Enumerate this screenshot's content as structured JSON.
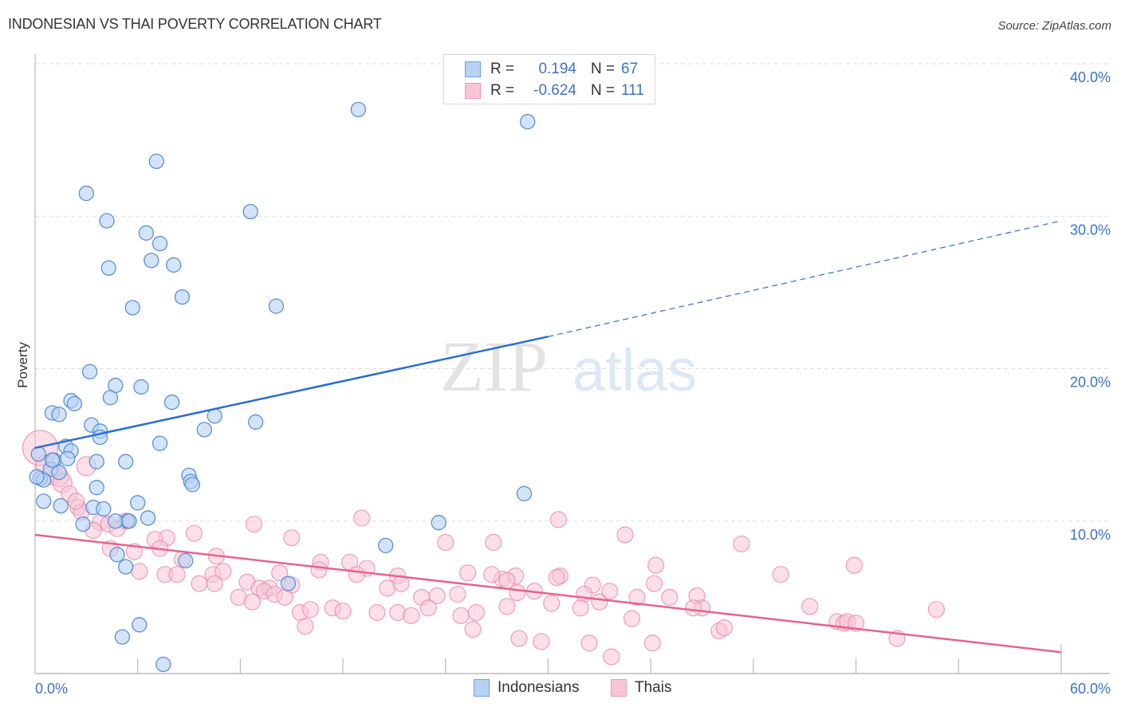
{
  "title": "INDONESIAN VS THAI POVERTY CORRELATION CHART",
  "source": "Source: ZipAtlas.com",
  "legend": {
    "rows": [
      {
        "series": "Indonesians",
        "r_label": "R =",
        "r_value": "0.194",
        "n_label": "N =",
        "n_value": "67"
      },
      {
        "series": "Thais",
        "r_label": "R =",
        "r_value": "-0.624",
        "n_label": "N =",
        "n_value": "111"
      }
    ]
  },
  "colors": {
    "indonesians_fill": "#b8d2f3",
    "indonesians_stroke": "#5b8fd8",
    "indonesians_line": "#2a6fd0",
    "thais_fill": "#f9c5d5",
    "thais_stroke": "#e98aa8",
    "thais_line": "#e5648e",
    "tick_label": "#3b73c8",
    "grid": "#dddddd"
  },
  "watermark": {
    "part1": "ZIP",
    "part2": "atlas"
  },
  "chart_data": {
    "type": "scatter",
    "title": "INDONESIAN VS THAI POVERTY CORRELATION CHART",
    "xlabel": "",
    "ylabel": "Poverty",
    "xlim": [
      0,
      60
    ],
    "ylim": [
      0,
      40
    ],
    "x_tick_labels": [
      "0.0%",
      "60.0%"
    ],
    "y_ticks": [
      10,
      20,
      30,
      40
    ],
    "y_tick_labels": [
      "10.0%",
      "20.0%",
      "30.0%",
      "40.0%"
    ],
    "grid": true,
    "legend_position": "bottom-center",
    "series": [
      {
        "name": "Indonesians",
        "r": 0.194,
        "n": 67,
        "trend": {
          "x0": 0,
          "y0": 14.8,
          "x1": 30,
          "y1": 22.1,
          "dashed_to_x": 60,
          "dashed_to_y": 29.7
        },
        "points": [
          [
            18.9,
            37.0
          ],
          [
            28.8,
            36.2
          ],
          [
            7.1,
            33.6
          ],
          [
            3.0,
            31.5
          ],
          [
            12.6,
            30.3
          ],
          [
            4.2,
            29.7
          ],
          [
            6.5,
            28.9
          ],
          [
            7.3,
            28.2
          ],
          [
            6.8,
            27.1
          ],
          [
            8.1,
            26.8
          ],
          [
            4.3,
            26.6
          ],
          [
            8.6,
            24.7
          ],
          [
            5.7,
            24.0
          ],
          [
            14.1,
            24.1
          ],
          [
            3.2,
            19.8
          ],
          [
            4.7,
            18.9
          ],
          [
            6.2,
            18.8
          ],
          [
            2.1,
            17.9
          ],
          [
            2.3,
            17.7
          ],
          [
            4.4,
            18.1
          ],
          [
            8.0,
            17.8
          ],
          [
            1.0,
            17.1
          ],
          [
            1.4,
            17.0
          ],
          [
            10.5,
            16.9
          ],
          [
            3.3,
            16.3
          ],
          [
            9.9,
            16.0
          ],
          [
            12.9,
            16.5
          ],
          [
            3.8,
            15.9
          ],
          [
            3.8,
            15.5
          ],
          [
            7.3,
            15.1
          ],
          [
            1.8,
            14.9
          ],
          [
            0.2,
            14.4
          ],
          [
            2.1,
            14.6
          ],
          [
            1.1,
            14.0
          ],
          [
            1.9,
            14.1
          ],
          [
            3.6,
            13.9
          ],
          [
            5.3,
            13.9
          ],
          [
            0.9,
            13.4
          ],
          [
            1.4,
            13.2
          ],
          [
            0.3,
            12.8
          ],
          [
            0.5,
            12.7
          ],
          [
            9.0,
            13.0
          ],
          [
            9.1,
            12.6
          ],
          [
            9.2,
            12.4
          ],
          [
            3.6,
            12.2
          ],
          [
            0.5,
            11.3
          ],
          [
            6.0,
            11.2
          ],
          [
            1.5,
            11.0
          ],
          [
            3.4,
            10.9
          ],
          [
            4.0,
            10.8
          ],
          [
            28.6,
            11.8
          ],
          [
            6.6,
            10.2
          ],
          [
            5.4,
            10.0
          ],
          [
            2.8,
            9.8
          ],
          [
            23.6,
            9.9
          ],
          [
            5.5,
            10.0
          ],
          [
            4.7,
            10.0
          ],
          [
            20.5,
            8.4
          ],
          [
            4.8,
            7.8
          ],
          [
            5.3,
            7.0
          ],
          [
            8.8,
            7.4
          ],
          [
            14.8,
            5.9
          ],
          [
            6.1,
            3.2
          ],
          [
            5.1,
            2.4
          ],
          [
            7.5,
            0.6
          ],
          [
            0.1,
            12.9
          ],
          [
            1.0,
            14.0
          ]
        ]
      },
      {
        "name": "Thais",
        "r": -0.624,
        "n": 111,
        "trend": {
          "x0": 0,
          "y0": 9.1,
          "x1": 60,
          "y1": 1.4
        },
        "points": [
          [
            0.3,
            14.8
          ],
          [
            0.6,
            13.7
          ],
          [
            1.0,
            13.0
          ],
          [
            1.4,
            12.9
          ],
          [
            1.6,
            12.5
          ],
          [
            3.0,
            13.6
          ],
          [
            2.0,
            11.8
          ],
          [
            2.5,
            10.9
          ],
          [
            2.7,
            10.6
          ],
          [
            3.8,
            9.9
          ],
          [
            3.4,
            9.4
          ],
          [
            4.3,
            9.8
          ],
          [
            4.8,
            9.5
          ],
          [
            5.3,
            10.0
          ],
          [
            7.7,
            8.9
          ],
          [
            9.3,
            9.2
          ],
          [
            12.8,
            9.8
          ],
          [
            15.0,
            8.9
          ],
          [
            19.1,
            10.2
          ],
          [
            24.0,
            8.6
          ],
          [
            26.8,
            8.6
          ],
          [
            30.6,
            10.1
          ],
          [
            34.5,
            9.1
          ],
          [
            41.3,
            8.5
          ],
          [
            4.4,
            8.2
          ],
          [
            5.8,
            8.0
          ],
          [
            7.0,
            8.8
          ],
          [
            7.3,
            8.2
          ],
          [
            8.6,
            7.5
          ],
          [
            10.6,
            7.7
          ],
          [
            16.7,
            7.3
          ],
          [
            18.4,
            7.3
          ],
          [
            19.4,
            6.9
          ],
          [
            21.2,
            6.4
          ],
          [
            25.3,
            6.6
          ],
          [
            27.3,
            6.2
          ],
          [
            28.1,
            6.4
          ],
          [
            30.7,
            6.4
          ],
          [
            32.6,
            5.8
          ],
          [
            36.3,
            7.1
          ],
          [
            43.6,
            6.5
          ],
          [
            47.9,
            7.1
          ],
          [
            6.1,
            6.7
          ],
          [
            7.6,
            6.5
          ],
          [
            8.3,
            6.5
          ],
          [
            10.4,
            6.5
          ],
          [
            11.0,
            6.7
          ],
          [
            12.4,
            6.0
          ],
          [
            13.1,
            5.6
          ],
          [
            13.7,
            5.6
          ],
          [
            14.3,
            6.6
          ],
          [
            15.0,
            5.8
          ],
          [
            16.6,
            6.8
          ],
          [
            18.8,
            6.5
          ],
          [
            20.6,
            5.6
          ],
          [
            21.4,
            5.9
          ],
          [
            22.6,
            5.0
          ],
          [
            23.5,
            5.1
          ],
          [
            24.7,
            5.2
          ],
          [
            26.7,
            6.5
          ],
          [
            27.6,
            6.1
          ],
          [
            28.2,
            5.3
          ],
          [
            29.2,
            5.4
          ],
          [
            30.5,
            6.3
          ],
          [
            32.1,
            5.2
          ],
          [
            33.0,
            4.7
          ],
          [
            33.6,
            5.4
          ],
          [
            35.2,
            5.0
          ],
          [
            37.1,
            5.0
          ],
          [
            38.7,
            5.1
          ],
          [
            9.6,
            5.9
          ],
          [
            10.5,
            5.9
          ],
          [
            11.9,
            5.0
          ],
          [
            12.7,
            4.7
          ],
          [
            13.4,
            5.4
          ],
          [
            14.0,
            5.2
          ],
          [
            14.6,
            5.0
          ],
          [
            15.5,
            4.0
          ],
          [
            16.1,
            4.2
          ],
          [
            17.4,
            4.3
          ],
          [
            18.0,
            4.1
          ],
          [
            20.0,
            4.0
          ],
          [
            21.2,
            4.0
          ],
          [
            22.0,
            3.8
          ],
          [
            23.0,
            4.3
          ],
          [
            24.9,
            3.8
          ],
          [
            25.8,
            4.0
          ],
          [
            27.6,
            4.4
          ],
          [
            30.2,
            4.6
          ],
          [
            31.9,
            4.3
          ],
          [
            34.9,
            3.6
          ],
          [
            39.0,
            4.3
          ],
          [
            40.0,
            2.8
          ],
          [
            40.3,
            3.0
          ],
          [
            45.3,
            4.4
          ],
          [
            46.9,
            3.4
          ],
          [
            47.3,
            3.3
          ],
          [
            47.5,
            3.4
          ],
          [
            48.0,
            3.3
          ],
          [
            52.7,
            4.2
          ],
          [
            15.8,
            3.1
          ],
          [
            25.6,
            2.9
          ],
          [
            28.3,
            2.3
          ],
          [
            29.6,
            2.1
          ],
          [
            32.4,
            2.0
          ],
          [
            33.7,
            1.1
          ],
          [
            36.1,
            2.0
          ],
          [
            50.4,
            2.3
          ],
          [
            38.5,
            4.3
          ],
          [
            36.2,
            5.9
          ],
          [
            2.4,
            11.3
          ]
        ]
      }
    ]
  }
}
